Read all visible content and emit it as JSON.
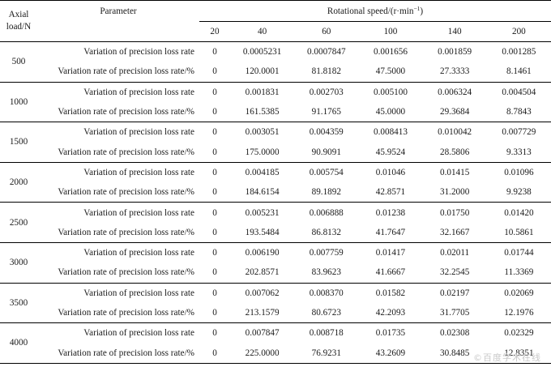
{
  "header": {
    "axial_load": "Axial load/N",
    "parameter": "Parameter",
    "speed_group": "Rotational speed/(r·min",
    "speed_group_sup": "−1",
    "speed_group_close": ")",
    "speeds": [
      "20",
      "40",
      "60",
      "100",
      "140",
      "200"
    ]
  },
  "rows": [
    {
      "load": "500",
      "a": {
        "label": "Variation of precision loss rate",
        "values": [
          "0",
          "0.0005231",
          "0.0007847",
          "0.001656",
          "0.001859",
          "0.001285"
        ]
      },
      "b": {
        "label": "Variation rate of precision loss rate/%",
        "values": [
          "0",
          "120.0001",
          "81.8182",
          "47.5000",
          "27.3333",
          "8.1461"
        ]
      }
    },
    {
      "load": "1000",
      "a": {
        "label": "Variation of precision loss rate",
        "values": [
          "0",
          "0.001831",
          "0.002703",
          "0.005100",
          "0.006324",
          "0.004504"
        ]
      },
      "b": {
        "label": "Variation rate of precision loss rate/%",
        "values": [
          "0",
          "161.5385",
          "91.1765",
          "45.0000",
          "29.3684",
          "8.7843"
        ]
      }
    },
    {
      "load": "1500",
      "a": {
        "label": "Variation of precision loss rate",
        "values": [
          "0",
          "0.003051",
          "0.004359",
          "0.008413",
          "0.010042",
          "0.007729"
        ]
      },
      "b": {
        "label": "Variation rate of precision loss rate/%",
        "values": [
          "0",
          "175.0000",
          "90.9091",
          "45.9524",
          "28.5806",
          "9.3313"
        ]
      }
    },
    {
      "load": "2000",
      "a": {
        "label": "Variation of precision loss rate",
        "values": [
          "0",
          "0.004185",
          "0.005754",
          "0.01046",
          "0.01415",
          "0.01096"
        ]
      },
      "b": {
        "label": "Variation rate of precision loss rate/%",
        "values": [
          "0",
          "184.6154",
          "89.1892",
          "42.8571",
          "31.2000",
          "9.9238"
        ]
      }
    },
    {
      "load": "2500",
      "a": {
        "label": "Variation of precision loss rate",
        "values": [
          "0",
          "0.005231",
          "0.006888",
          "0.01238",
          "0.01750",
          "0.01420"
        ]
      },
      "b": {
        "label": "Variation rate of precision loss rate/%",
        "values": [
          "0",
          "193.5484",
          "86.8132",
          "41.7647",
          "32.1667",
          "10.5861"
        ]
      }
    },
    {
      "load": "3000",
      "a": {
        "label": "Variation of precision loss rate",
        "values": [
          "0",
          "0.006190",
          "0.007759",
          "0.01417",
          "0.02011",
          "0.01744"
        ]
      },
      "b": {
        "label": "Variation rate of precision loss rate/%",
        "values": [
          "0",
          "202.8571",
          "83.9623",
          "41.6667",
          "32.2545",
          "11.3369"
        ]
      }
    },
    {
      "load": "3500",
      "a": {
        "label": "Variation of precision loss rate",
        "values": [
          "0",
          "0.007062",
          "0.008370",
          "0.01582",
          "0.02197",
          "0.02069"
        ]
      },
      "b": {
        "label": "Variation rate of precision loss rate/%",
        "values": [
          "0",
          "213.1579",
          "80.6723",
          "42.2093",
          "31.7705",
          "12.1976"
        ]
      }
    },
    {
      "load": "4000",
      "a": {
        "label": "Variation of precision loss rate",
        "values": [
          "0",
          "0.007847",
          "0.008718",
          "0.01735",
          "0.02308",
          "0.02329"
        ]
      },
      "b": {
        "label": "Variation rate of precision loss rate/%",
        "values": [
          "0",
          "225.0000",
          "76.9231",
          "43.2609",
          "30.8485",
          "12.8351"
        ]
      }
    }
  ],
  "watermark": "©百度学术在线"
}
